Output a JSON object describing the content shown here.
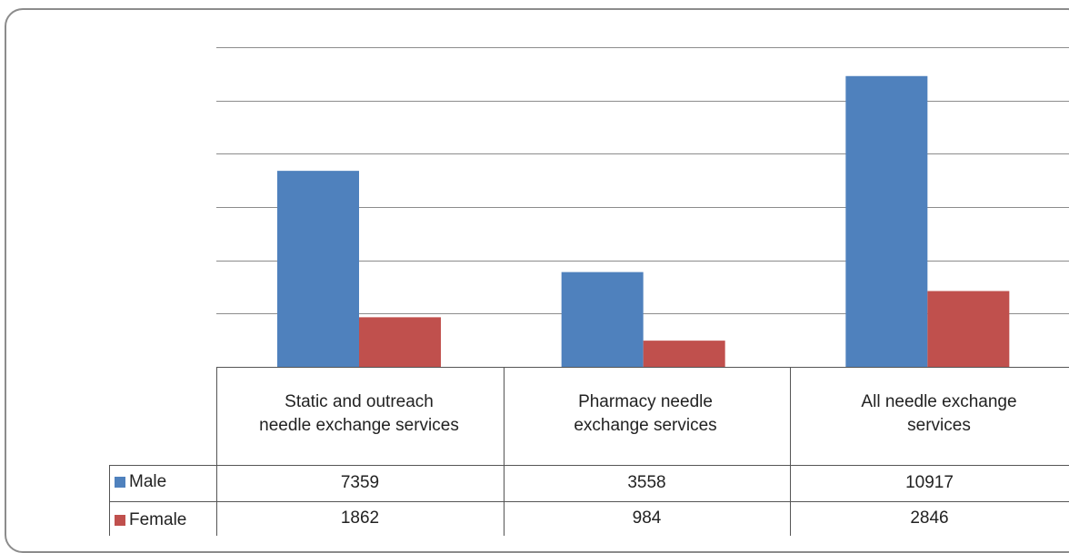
{
  "chart_data": {
    "type": "bar",
    "categories": [
      "Static and outreach needle exchange services",
      "Pharmacy needle exchange services",
      "All needle exchange services"
    ],
    "series": [
      {
        "name": "Male",
        "values": [
          7359,
          3558,
          10917
        ],
        "color": "#4F81BD"
      },
      {
        "name": "Female",
        "values": [
          1862,
          984,
          2846
        ],
        "color": "#C0504D"
      }
    ],
    "ylim": [
      0,
      12000
    ],
    "grid": true,
    "legend": "data table rows"
  },
  "table": {
    "male_values": [
      "7359",
      "3558",
      "10917"
    ],
    "female_values": [
      "1862",
      "984",
      "2846"
    ]
  }
}
